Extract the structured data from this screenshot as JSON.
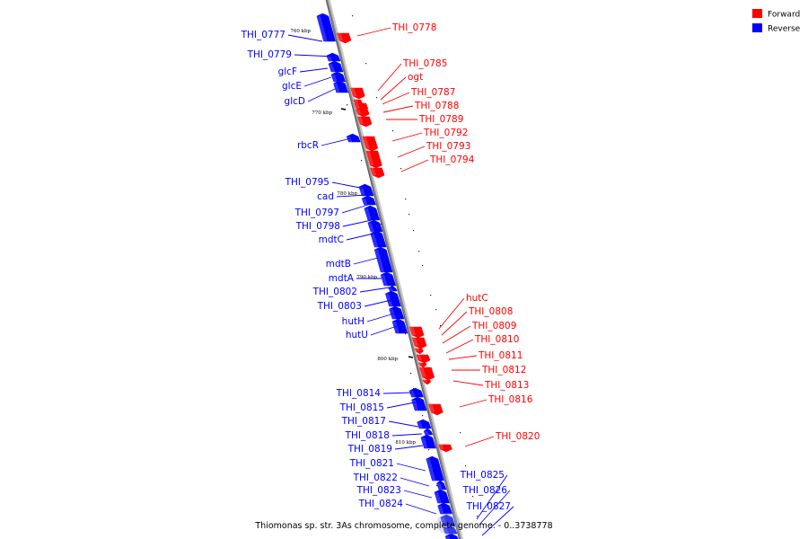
{
  "colors": {
    "forward": "#ff0000",
    "reverse": "#0000ff",
    "backbone": "#888888"
  },
  "legend": [
    {
      "strand": "forward",
      "label": "Forward"
    },
    {
      "strand": "reverse",
      "label": "Reverse"
    }
  ],
  "caption": "Thiomonas sp. str. 3As chromosome, complete genome. - 0..3738778",
  "ticks": [
    {
      "label": "760 kbp"
    },
    {
      "label": "770 kbp"
    },
    {
      "label": "780 kbp"
    },
    {
      "label": "790 kbp"
    },
    {
      "label": "800 kbp"
    },
    {
      "label": "810 kbp"
    }
  ],
  "genes": [
    {
      "name": "THI_0777",
      "strand": "reverse"
    },
    {
      "name": "THI_0778",
      "strand": "forward"
    },
    {
      "name": "THI_0779",
      "strand": "reverse"
    },
    {
      "name": "glcF",
      "strand": "reverse"
    },
    {
      "name": "glcE",
      "strand": "reverse"
    },
    {
      "name": "glcD",
      "strand": "reverse"
    },
    {
      "name": "THI_0785",
      "strand": "forward"
    },
    {
      "name": "ogt",
      "strand": "forward"
    },
    {
      "name": "THI_0787",
      "strand": "forward"
    },
    {
      "name": "THI_0788",
      "strand": "forward"
    },
    {
      "name": "THI_0789",
      "strand": "forward"
    },
    {
      "name": "rbcR",
      "strand": "reverse"
    },
    {
      "name": "THI_0792",
      "strand": "forward"
    },
    {
      "name": "THI_0793",
      "strand": "forward"
    },
    {
      "name": "THI_0794",
      "strand": "forward"
    },
    {
      "name": "THI_0795",
      "strand": "reverse"
    },
    {
      "name": "cad",
      "strand": "reverse"
    },
    {
      "name": "THI_0797",
      "strand": "reverse"
    },
    {
      "name": "THI_0798",
      "strand": "reverse"
    },
    {
      "name": "mdtC",
      "strand": "reverse"
    },
    {
      "name": "mdtB",
      "strand": "reverse"
    },
    {
      "name": "mdtA",
      "strand": "reverse"
    },
    {
      "name": "THI_0802",
      "strand": "reverse"
    },
    {
      "name": "THI_0803",
      "strand": "reverse"
    },
    {
      "name": "hutH",
      "strand": "reverse"
    },
    {
      "name": "hutU",
      "strand": "reverse"
    },
    {
      "name": "hutC",
      "strand": "forward"
    },
    {
      "name": "THI_0808",
      "strand": "forward"
    },
    {
      "name": "THI_0809",
      "strand": "forward"
    },
    {
      "name": "THI_0810",
      "strand": "forward"
    },
    {
      "name": "THI_0811",
      "strand": "forward"
    },
    {
      "name": "THI_0812",
      "strand": "forward"
    },
    {
      "name": "THI_0813",
      "strand": "forward"
    },
    {
      "name": "THI_0816",
      "strand": "forward"
    },
    {
      "name": "THI_0814",
      "strand": "reverse"
    },
    {
      "name": "THI_0815",
      "strand": "reverse"
    },
    {
      "name": "THI_0817",
      "strand": "reverse"
    },
    {
      "name": "THI_0818",
      "strand": "reverse"
    },
    {
      "name": "THI_0819",
      "strand": "reverse"
    },
    {
      "name": "THI_0820",
      "strand": "forward"
    },
    {
      "name": "THI_0821",
      "strand": "reverse"
    },
    {
      "name": "THI_0822",
      "strand": "reverse"
    },
    {
      "name": "THI_0823",
      "strand": "reverse"
    },
    {
      "name": "THI_0824",
      "strand": "reverse"
    },
    {
      "name": "THI_0825",
      "strand": "reverse"
    },
    {
      "name": "THI_0826",
      "strand": "reverse"
    },
    {
      "name": "THI_0827",
      "strand": "reverse"
    }
  ]
}
